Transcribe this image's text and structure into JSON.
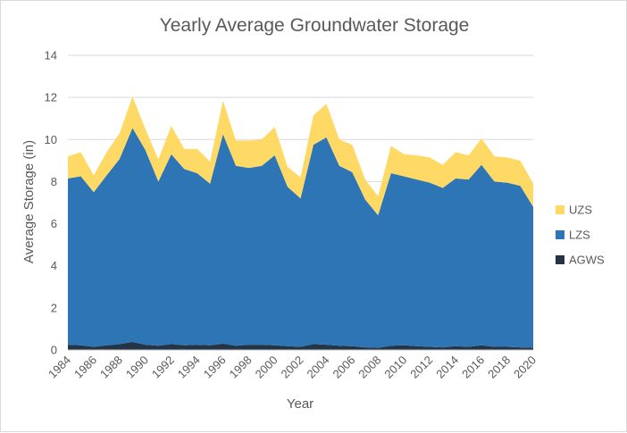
{
  "chart_data": {
    "type": "area",
    "stacked": true,
    "title": "Yearly Average Groundwater Storage",
    "xlabel": "Year",
    "ylabel": "Average Storage (in)",
    "ylim": [
      0,
      14
    ],
    "yticks": [
      0,
      2,
      4,
      6,
      8,
      10,
      12,
      14
    ],
    "grid": "horizontal",
    "legend_position": "right",
    "x": [
      1984,
      1985,
      1986,
      1987,
      1988,
      1989,
      1990,
      1991,
      1992,
      1993,
      1994,
      1995,
      1996,
      1997,
      1998,
      1999,
      2000,
      2001,
      2002,
      2003,
      2004,
      2005,
      2006,
      2007,
      2008,
      2009,
      2010,
      2011,
      2012,
      2013,
      2014,
      2015,
      2016,
      2017,
      2018,
      2019,
      2020
    ],
    "xtick_labels": [
      "1984",
      "1986",
      "1988",
      "1990",
      "1992",
      "1994",
      "1996",
      "1998",
      "2000",
      "2002",
      "2004",
      "2006",
      "2008",
      "2010",
      "2012",
      "2014",
      "2016",
      "2018",
      "2020"
    ],
    "series": [
      {
        "name": "AGWS",
        "color": "#243447",
        "values": [
          0.25,
          0.22,
          0.15,
          0.22,
          0.28,
          0.38,
          0.25,
          0.2,
          0.28,
          0.22,
          0.25,
          0.22,
          0.3,
          0.2,
          0.25,
          0.25,
          0.22,
          0.18,
          0.15,
          0.28,
          0.25,
          0.2,
          0.18,
          0.12,
          0.1,
          0.2,
          0.22,
          0.18,
          0.15,
          0.12,
          0.18,
          0.15,
          0.22,
          0.15,
          0.15,
          0.12,
          0.1
        ]
      },
      {
        "name": "LZS",
        "color": "#2e75b6",
        "values": [
          7.9,
          8.03,
          7.35,
          8.08,
          8.8,
          10.17,
          9.25,
          7.8,
          9.02,
          8.38,
          8.15,
          7.68,
          9.95,
          8.55,
          8.4,
          8.5,
          9.03,
          7.57,
          7.05,
          9.47,
          9.85,
          8.55,
          8.27,
          7.03,
          6.3,
          8.2,
          8.03,
          7.92,
          7.8,
          7.58,
          7.97,
          7.95,
          8.58,
          7.85,
          7.8,
          7.68,
          6.7
        ]
      },
      {
        "name": "UZS",
        "color": "#ffd966",
        "values": [
          1.05,
          1.15,
          0.8,
          1.1,
          1.22,
          1.5,
          1.0,
          1.05,
          1.35,
          0.95,
          1.15,
          1.05,
          1.6,
          1.2,
          1.3,
          1.25,
          1.35,
          0.95,
          1.0,
          1.4,
          1.6,
          1.25,
          1.3,
          0.95,
          0.9,
          1.3,
          1.05,
          1.15,
          1.2,
          1.1,
          1.25,
          1.15,
          1.25,
          1.2,
          1.2,
          1.2,
          1.1
        ]
      }
    ],
    "legend_order": [
      "UZS",
      "LZS",
      "AGWS"
    ]
  }
}
